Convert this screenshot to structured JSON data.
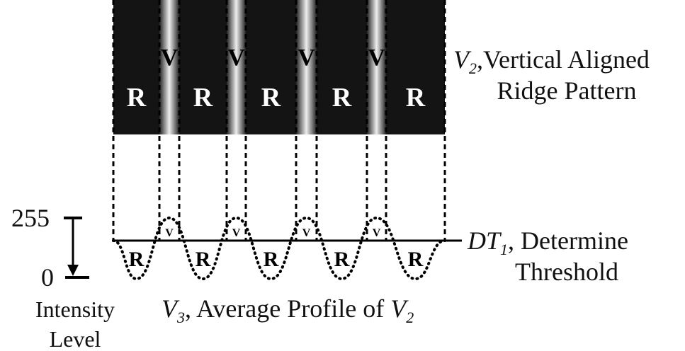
{
  "strip": {
    "ridges": [
      "R",
      "R",
      "R",
      "R",
      "R"
    ],
    "valleys": [
      "V",
      "V",
      "V",
      "V"
    ]
  },
  "profile": {
    "ridges": [
      "R",
      "R",
      "R",
      "R",
      "R"
    ],
    "valleys": [
      "V",
      "V",
      "V",
      "V"
    ]
  },
  "labels": {
    "pattern": {
      "symbol": "V",
      "subscript": "2",
      "line1": ",Vertical Aligned",
      "line2": "Ridge Pattern"
    },
    "threshold": {
      "symbol": "DT",
      "subscript": "1",
      "line1": ", Determine",
      "line2": "Threshold"
    },
    "profile": {
      "symbol": "V",
      "subscript": "3",
      "text": ", Average Profile of ",
      "symbol2": "V",
      "subscript2": "2"
    },
    "intensity": {
      "max": "255",
      "min": "0",
      "line1": "Intensity",
      "line2": "Level"
    }
  }
}
